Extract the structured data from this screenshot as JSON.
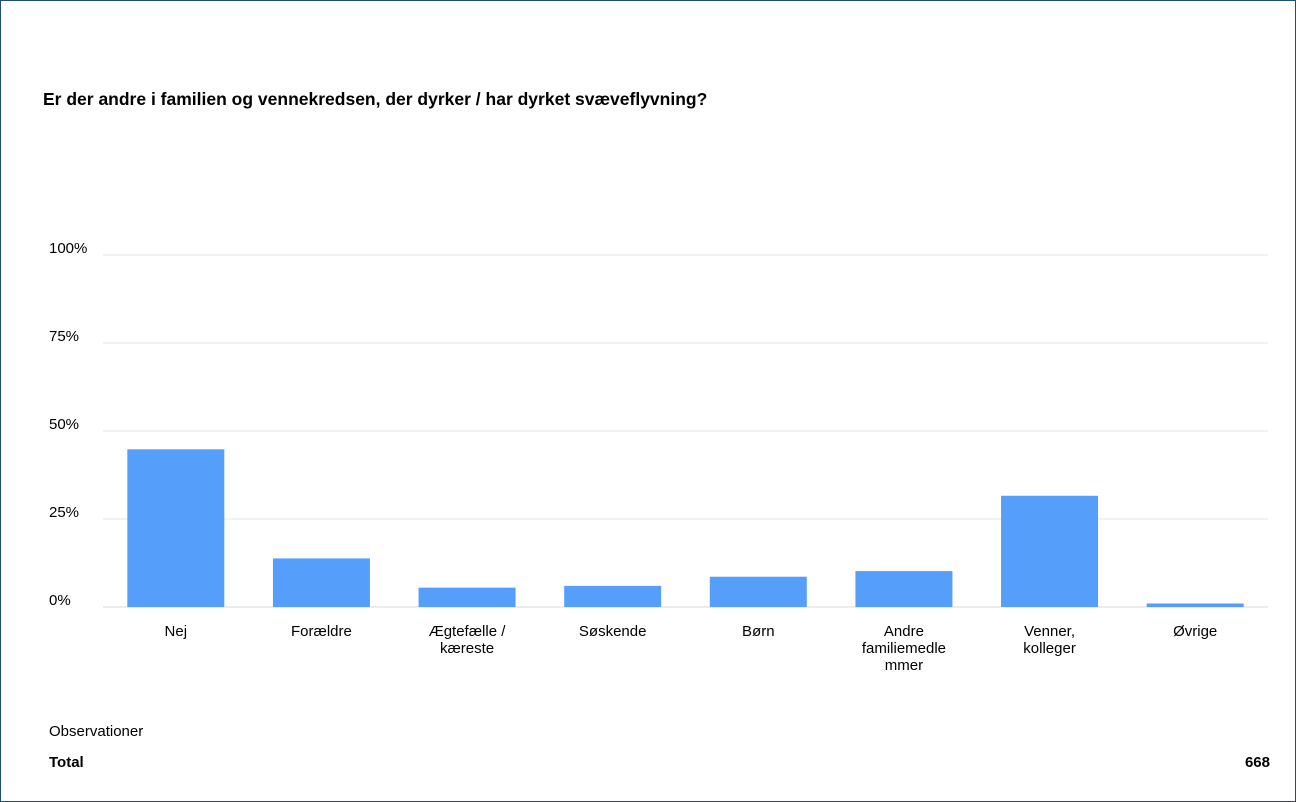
{
  "title": "Er der andre i familien og vennekredsen, der dyrker / har dyrket svæveflyvning?",
  "colors": {
    "bar": "#559ffb",
    "grid": "#e6e6e6",
    "border": "#1f4e79"
  },
  "chart_data": {
    "type": "bar",
    "title": "Er der andre i familien og vennekredsen, der dyrker / har dyrket svæveflyvning?",
    "xlabel": "",
    "ylabel": "",
    "ylim": [
      0,
      100
    ],
    "yticks": [
      0,
      25,
      50,
      75,
      100
    ],
    "ytick_labels": [
      "0%",
      "25%",
      "50%",
      "75%",
      "100%"
    ],
    "grid": true,
    "categories": [
      [
        "Nej"
      ],
      [
        "Forældre"
      ],
      [
        "Ægtefælle /",
        "kæreste"
      ],
      [
        "Søskende"
      ],
      [
        "Børn"
      ],
      [
        "Andre",
        "familiemedle",
        "mmer"
      ],
      [
        "Venner,",
        "kolleger"
      ],
      [
        "Øvrige"
      ]
    ],
    "values": [
      44.8,
      13.8,
      5.5,
      6.0,
      8.6,
      10.2,
      31.6,
      1.0
    ]
  },
  "footer": {
    "observations_label": "Observationer",
    "total_label": "Total",
    "total_value": "668"
  }
}
